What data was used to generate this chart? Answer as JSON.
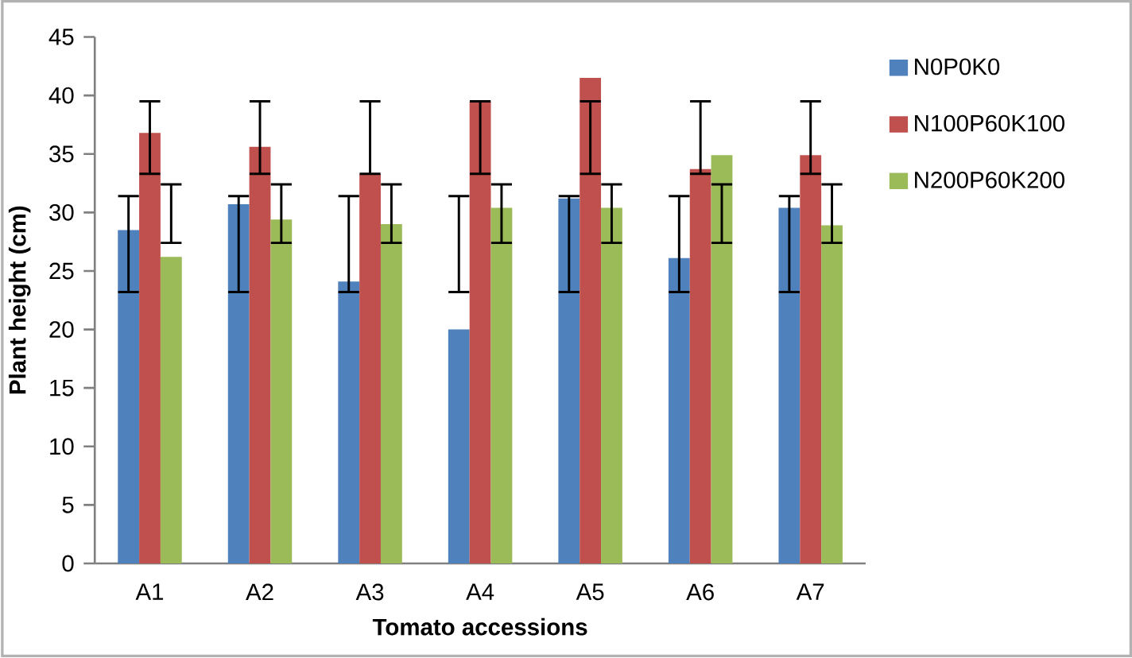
{
  "chart_data": {
    "type": "bar",
    "xlabel": "Tomato accessions",
    "ylabel": "Plant height (cm)",
    "categories": [
      "A1",
      "A2",
      "A3",
      "A4",
      "A5",
      "A6",
      "A7"
    ],
    "series": [
      {
        "name": "N0P0K0",
        "color": "#4f81bd",
        "values": [
          28.5,
          30.7,
          24.1,
          20.0,
          31.2,
          26.1,
          30.4
        ],
        "errors": [
          [
            23.2,
            31.4
          ],
          [
            23.2,
            31.4
          ],
          [
            23.2,
            31.4
          ],
          [
            23.2,
            31.4
          ],
          [
            23.2,
            31.4
          ],
          [
            23.2,
            31.4
          ],
          [
            23.2,
            31.4
          ]
        ]
      },
      {
        "name": "N100P60K100",
        "color": "#c0504d",
        "values": [
          36.8,
          35.6,
          33.3,
          39.5,
          41.5,
          33.7,
          34.9
        ],
        "errors": [
          [
            33.3,
            39.5
          ],
          [
            33.3,
            39.5
          ],
          [
            33.3,
            39.5
          ],
          [
            33.3,
            39.5
          ],
          [
            33.3,
            39.5
          ],
          [
            33.3,
            39.5
          ],
          [
            33.3,
            39.5
          ]
        ]
      },
      {
        "name": "N200P60K200",
        "color": "#9bbb59",
        "values": [
          26.2,
          29.4,
          29.0,
          30.4,
          30.4,
          34.9,
          28.9
        ],
        "errors": [
          [
            27.4,
            32.4
          ],
          [
            27.4,
            32.4
          ],
          [
            27.4,
            32.4
          ],
          [
            27.4,
            32.4
          ],
          [
            27.4,
            32.4
          ],
          [
            27.4,
            32.4
          ],
          [
            27.4,
            32.4
          ]
        ]
      }
    ],
    "ylim": [
      0,
      45
    ],
    "yticks": [
      0,
      5,
      10,
      15,
      20,
      25,
      30,
      35,
      40,
      45
    ],
    "grid": false,
    "legend": "right"
  }
}
